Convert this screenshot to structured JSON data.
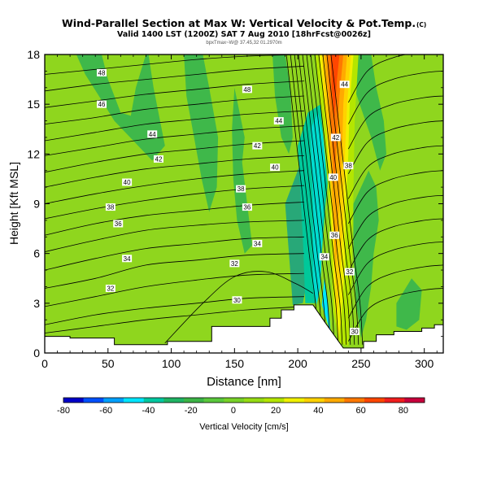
{
  "chart_data": {
    "type": "heatmap",
    "title": "Wind-Parallel Section at Max W: Vertical Velocity & Pot.Temp.",
    "title_mark": "(C)",
    "subtitle": "Valid 1400 LST (1200Z) SAT 7 Aug 2010 [18hrFcst@0026z]",
    "subtitle2": "bpxTmax~W@ 37.45,32 01.2970m",
    "xlabel": "Distance [nm]",
    "ylabel": "Height [Kft MSL]",
    "xlim": [
      0,
      315
    ],
    "ylim": [
      0,
      18
    ],
    "x_ticks": [
      0,
      50,
      100,
      150,
      200,
      250,
      300
    ],
    "y_ticks": [
      0,
      3,
      6,
      9,
      12,
      15,
      18
    ],
    "colorbar": {
      "label": "Vertical Velocity [cm/s]",
      "range": [
        -80,
        90
      ],
      "tick_values": [
        -80,
        -60,
        -40,
        -20,
        0,
        20,
        40,
        60,
        80
      ],
      "colors": [
        "#0000c8",
        "#0050ff",
        "#00a0ff",
        "#00e6ff",
        "#00c8a0",
        "#20b464",
        "#3cb446",
        "#5ac83c",
        "#78d228",
        "#96dc14",
        "#b4e600",
        "#f0f000",
        "#ffd200",
        "#ffaa00",
        "#ff7800",
        "#ff4600",
        "#f01e1e",
        "#c8003c"
      ]
    },
    "theta_labels": [
      {
        "value": "48",
        "x": 45,
        "y": 16.9
      },
      {
        "value": "46",
        "x": 45,
        "y": 15.0
      },
      {
        "value": "44",
        "x": 85,
        "y": 13.2
      },
      {
        "value": "42",
        "x": 90,
        "y": 11.7
      },
      {
        "value": "40",
        "x": 65,
        "y": 10.3
      },
      {
        "value": "38",
        "x": 52,
        "y": 8.8
      },
      {
        "value": "36",
        "x": 58,
        "y": 7.8
      },
      {
        "value": "34",
        "x": 65,
        "y": 5.7
      },
      {
        "value": "32",
        "x": 52,
        "y": 3.9
      },
      {
        "value": "48",
        "x": 160,
        "y": 15.9
      },
      {
        "value": "44",
        "x": 185,
        "y": 14.0
      },
      {
        "value": "42",
        "x": 168,
        "y": 12.5
      },
      {
        "value": "40",
        "x": 182,
        "y": 11.2
      },
      {
        "value": "38",
        "x": 155,
        "y": 9.9
      },
      {
        "value": "36",
        "x": 160,
        "y": 8.8
      },
      {
        "value": "34",
        "x": 168,
        "y": 6.6
      },
      {
        "value": "32",
        "x": 150,
        "y": 5.4
      },
      {
        "value": "30",
        "x": 152,
        "y": 3.2
      },
      {
        "value": "44",
        "x": 237,
        "y": 16.2
      },
      {
        "value": "42",
        "x": 230,
        "y": 13.0
      },
      {
        "value": "40",
        "x": 228,
        "y": 10.6
      },
      {
        "value": "38",
        "x": 240,
        "y": 11.3
      },
      {
        "value": "36",
        "x": 229,
        "y": 7.1
      },
      {
        "value": "34",
        "x": 221,
        "y": 5.8
      },
      {
        "value": "32",
        "x": 241,
        "y": 4.9
      },
      {
        "value": "30",
        "x": 245,
        "y": 1.3
      }
    ],
    "terrain_profile": [
      {
        "x": 0,
        "h": 1.0
      },
      {
        "x": 20,
        "h": 1.0
      },
      {
        "x": 20,
        "h": 0.9
      },
      {
        "x": 55,
        "h": 0.9
      },
      {
        "x": 55,
        "h": 0.5
      },
      {
        "x": 97,
        "h": 0.5
      },
      {
        "x": 97,
        "h": 0.7
      },
      {
        "x": 132,
        "h": 0.7
      },
      {
        "x": 132,
        "h": 1.6
      },
      {
        "x": 178,
        "h": 1.6
      },
      {
        "x": 178,
        "h": 2.1
      },
      {
        "x": 187,
        "h": 2.1
      },
      {
        "x": 187,
        "h": 2.6
      },
      {
        "x": 197,
        "h": 2.6
      },
      {
        "x": 197,
        "h": 2.9
      },
      {
        "x": 212,
        "h": 2.9
      },
      {
        "x": 222,
        "h": 1.8
      },
      {
        "x": 236,
        "h": 0.3
      },
      {
        "x": 252,
        "h": 0.3
      },
      {
        "x": 252,
        "h": 0.7
      },
      {
        "x": 262,
        "h": 0.7
      },
      {
        "x": 262,
        "h": 1.1
      },
      {
        "x": 276,
        "h": 1.1
      },
      {
        "x": 276,
        "h": 1.3
      },
      {
        "x": 298,
        "h": 1.3
      },
      {
        "x": 298,
        "h": 1.5
      },
      {
        "x": 308,
        "h": 1.5
      },
      {
        "x": 308,
        "h": 1.7
      },
      {
        "x": 315,
        "h": 1.7
      }
    ]
  }
}
